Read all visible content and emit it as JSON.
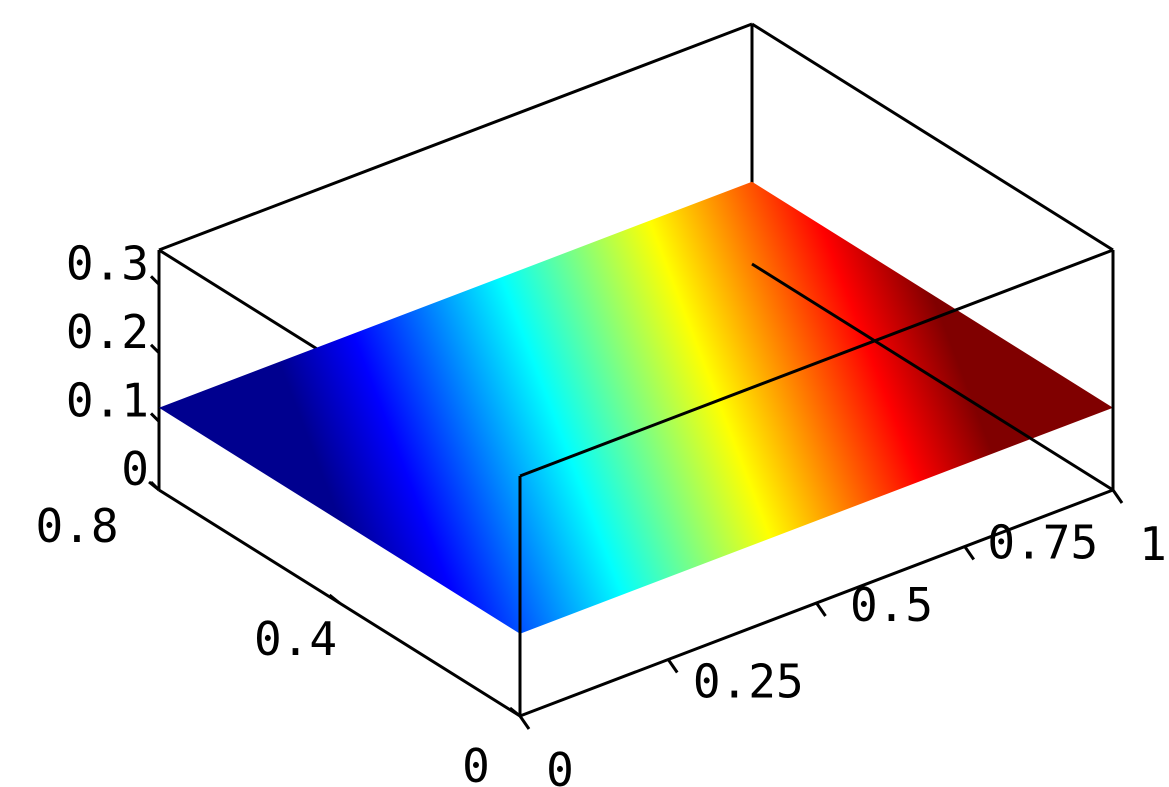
{
  "chart_data": {
    "type": "surface",
    "colormap": "jet",
    "grid": false,
    "x_axis": {
      "ticks": [
        0,
        0.25,
        0.5,
        0.75,
        1
      ],
      "tick_labels": [
        "0",
        "0.25",
        "0.5",
        "0.75",
        "1"
      ],
      "range": [
        0,
        1
      ]
    },
    "y_axis": {
      "ticks": [
        0,
        0.4,
        0.8
      ],
      "tick_labels": [
        "0",
        "0.4",
        "0.8"
      ],
      "range": [
        0,
        0.8
      ]
    },
    "z_axis": {
      "ticks": [
        0,
        0.1,
        0.2,
        0.3
      ],
      "tick_labels": [
        "0",
        "0.1",
        "0.2",
        "0.3"
      ],
      "range": [
        0,
        0.35
      ]
    },
    "surface": {
      "z_value": 0.12,
      "color_by": "x",
      "color_range": [
        0,
        1
      ]
    }
  }
}
